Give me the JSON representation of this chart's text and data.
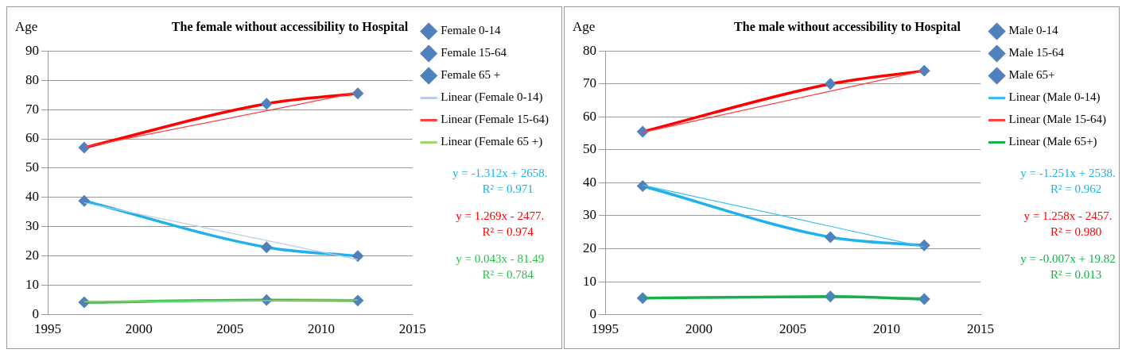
{
  "chart_data": [
    {
      "type": "line",
      "title": "The female without accessibility to Hospital",
      "ylabel": "Age",
      "x": [
        1997,
        2007,
        2012
      ],
      "xlim": [
        1995,
        2015
      ],
      "xticks": [
        1995,
        2000,
        2005,
        2010,
        2015
      ],
      "ylim": [
        0,
        90
      ],
      "yticks": [
        0,
        10,
        20,
        30,
        40,
        50,
        60,
        70,
        80,
        90
      ],
      "grid": "y",
      "legend": "right",
      "marker": "diamond",
      "series": [
        {
          "name": "Female 0-14",
          "color": "#1fb1ec",
          "values": [
            38.8,
            23,
            20
          ]
        },
        {
          "name": "Female 15-64",
          "color": "#ff0000",
          "values": [
            57,
            72,
            75.5
          ]
        },
        {
          "name": "Female 65 +",
          "color": "#2ebd4e",
          "values": [
            4.2,
            5,
            4.8
          ]
        },
        {
          "name": "Linear (Female 0-14)",
          "type": "line",
          "marker": "none",
          "color": "#b9cde8",
          "values": [
            38.2,
            25.3,
            18.8
          ]
        },
        {
          "name": "Linear (Female 15-64)",
          "type": "line",
          "marker": "none",
          "color": "#ff4040",
          "values": [
            57.2,
            69.6,
            75.8
          ]
        },
        {
          "name": "Linear (Female 65 +)",
          "type": "line",
          "marker": "none",
          "color": "#9ad86a",
          "values": [
            4.4,
            4.8,
            5
          ]
        }
      ],
      "annotations": [
        "y = -1.312x + 2658.",
        "R² = 0.971",
        "y = 1.269x - 2477.",
        "R² = 0.974",
        "y = 0.043x - 81.49",
        "R² = 0.784"
      ]
    },
    {
      "type": "line",
      "title": "The male without accessibility to Hospital",
      "ylabel": "Age",
      "x": [
        1997,
        2007,
        2012
      ],
      "xlim": [
        1995,
        2015
      ],
      "xticks": [
        1995,
        2000,
        2005,
        2010,
        2015
      ],
      "ylim": [
        0,
        80
      ],
      "yticks": [
        0,
        10,
        20,
        30,
        40,
        50,
        60,
        70,
        80
      ],
      "grid": "y",
      "legend": "right",
      "marker": "diamond",
      "series": [
        {
          "name": "Male 0-14",
          "color": "#1fb1ec",
          "values": [
            39,
            23.5,
            21
          ]
        },
        {
          "name": "Male 15-64",
          "color": "#ff0000",
          "values": [
            55.5,
            70,
            74
          ]
        },
        {
          "name": "Male 65+",
          "color": "#16b04c",
          "values": [
            5,
            5.5,
            4.7
          ]
        },
        {
          "name": "Linear (Male 0-14)",
          "type": "line",
          "marker": "none",
          "color": "#3cc0f0",
          "values": [
            39.3,
            26.8,
            20.5
          ]
        },
        {
          "name": "Linear (Male 15-64)",
          "type": "line",
          "marker": "none",
          "color": "#ff4040",
          "values": [
            55.3,
            67.8,
            74
          ]
        },
        {
          "name": "Linear (Male 65+)",
          "type": "line",
          "marker": "none",
          "color": "#16b04c",
          "values": [
            5.3,
            5.2,
            5.1
          ]
        }
      ],
      "annotations": [
        "y = -1.251x + 2538.",
        "R² = 0.962",
        "y = 1.258x - 2457.",
        "R² = 0.980",
        "y = -0.007x + 19.82",
        "R² = 0.013"
      ]
    }
  ]
}
